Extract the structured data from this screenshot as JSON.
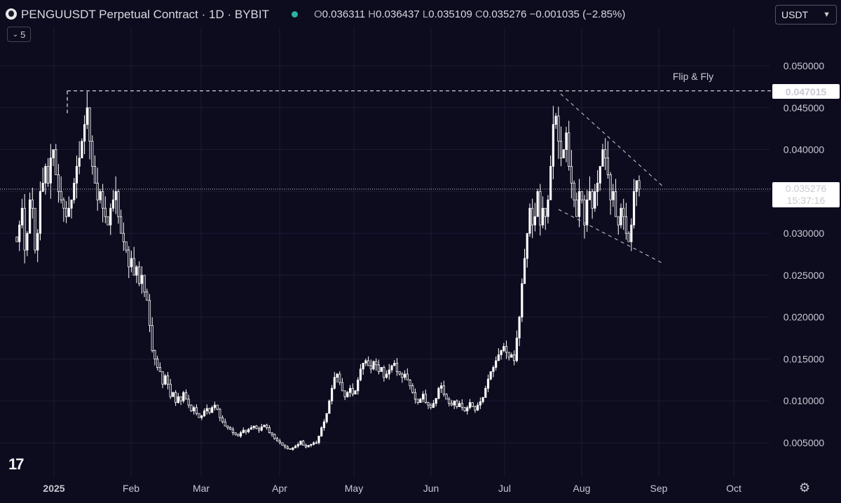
{
  "header": {
    "title": "PENGUUSDT Perpetual Contract · 1D · BYBIT",
    "o_label": "O",
    "o": "0.036311",
    "h_label": "H",
    "h": "0.036437",
    "l_label": "L",
    "l": "0.035109",
    "c_label": "C",
    "c": "0.035276",
    "change": "−0.001035 (−2.85%)"
  },
  "indicator_count": "5",
  "currency_select": "USDT",
  "annotation": "Flip & Fly",
  "price_tags": {
    "level": "0.047015",
    "last": "0.035276",
    "countdown": "15:37:16"
  },
  "icons": {
    "logo": "pengu-logo-icon",
    "settings": "gear-icon",
    "brand": "tradingview-logo-icon"
  },
  "colors": {
    "background": "#0d0b1e",
    "candle": "#ffffff",
    "accent": "#2bb2a4"
  },
  "chart_data": {
    "type": "candlestick",
    "title": "PENGUUSDT Perpetual Contract · 1D · BYBIT",
    "ylim": [
      0.002,
      0.0525
    ],
    "y_ticks": [
      "0.050000",
      "0.045000",
      "0.040000",
      "0.035000",
      "0.030000",
      "0.025000",
      "0.020000",
      "0.015000",
      "0.010000",
      "0.005000"
    ],
    "x_ticks": [
      "2025",
      "Feb",
      "Mar",
      "Apr",
      "May",
      "Jun",
      "Jul",
      "Aug",
      "Sep",
      "Oct"
    ],
    "horizontal_level": 0.047015,
    "last_price": 0.035276,
    "close_series": [
      0.029,
      0.031,
      0.033,
      0.028,
      0.03,
      0.034,
      0.033,
      0.028,
      0.03,
      0.035,
      0.036,
      0.038,
      0.036,
      0.039,
      0.04,
      0.037,
      0.035,
      0.034,
      0.033,
      0.032,
      0.033,
      0.034,
      0.036,
      0.038,
      0.039,
      0.041,
      0.043,
      0.045,
      0.041,
      0.038,
      0.036,
      0.034,
      0.035,
      0.033,
      0.032,
      0.031,
      0.033,
      0.034,
      0.035,
      0.032,
      0.03,
      0.029,
      0.028,
      0.026,
      0.027,
      0.025,
      0.026,
      0.024,
      0.025,
      0.023,
      0.022,
      0.019,
      0.016,
      0.015,
      0.014,
      0.0135,
      0.012,
      0.013,
      0.012,
      0.0105,
      0.011,
      0.0098,
      0.0105,
      0.01,
      0.011,
      0.0102,
      0.0095,
      0.0088,
      0.0092,
      0.0085,
      0.008,
      0.0082,
      0.0088,
      0.0091,
      0.0086,
      0.0092,
      0.0095,
      0.009,
      0.008,
      0.0075,
      0.007,
      0.0068,
      0.0066,
      0.0062,
      0.006,
      0.0058,
      0.0062,
      0.0065,
      0.0063,
      0.0066,
      0.0068,
      0.007,
      0.0067,
      0.0065,
      0.0069,
      0.0071,
      0.0068,
      0.0062,
      0.006,
      0.0055,
      0.0052,
      0.005,
      0.0047,
      0.0045,
      0.0043,
      0.0042,
      0.0044,
      0.0046,
      0.0048,
      0.0052,
      0.0047,
      0.0045,
      0.0047,
      0.0048,
      0.005,
      0.005,
      0.0058,
      0.0068,
      0.0075,
      0.0085,
      0.01,
      0.0115,
      0.0128,
      0.0132,
      0.0122,
      0.0112,
      0.0105,
      0.011,
      0.0115,
      0.0108,
      0.0112,
      0.0125,
      0.0138,
      0.0145,
      0.0148,
      0.0142,
      0.0138,
      0.0147,
      0.0143,
      0.0135,
      0.014,
      0.0128,
      0.0132,
      0.0137,
      0.0142,
      0.0145,
      0.0135,
      0.0132,
      0.0128,
      0.0132,
      0.0125,
      0.0118,
      0.011,
      0.0102,
      0.0098,
      0.0102,
      0.0108,
      0.0098,
      0.0095,
      0.0092,
      0.0097,
      0.0103,
      0.0115,
      0.0118,
      0.0108,
      0.0102,
      0.0097,
      0.0095,
      0.01,
      0.0093,
      0.0097,
      0.0092,
      0.0088,
      0.0092,
      0.0098,
      0.0093,
      0.0089,
      0.0095,
      0.0099,
      0.0104,
      0.0115,
      0.0126,
      0.0135,
      0.014,
      0.0148,
      0.0155,
      0.016,
      0.0165,
      0.0158,
      0.0152,
      0.0155,
      0.0148,
      0.0175,
      0.02,
      0.024,
      0.027,
      0.03,
      0.033,
      0.031,
      0.032,
      0.035,
      0.031,
      0.033,
      0.032,
      0.034,
      0.038,
      0.043,
      0.044,
      0.041,
      0.039,
      0.04,
      0.042,
      0.038,
      0.036,
      0.034,
      0.032,
      0.035,
      0.034,
      0.031,
      0.034,
      0.035,
      0.033,
      0.035,
      0.036,
      0.038,
      0.04,
      0.039,
      0.037,
      0.034,
      0.035,
      0.032,
      0.031,
      0.033,
      0.032,
      0.03,
      0.029,
      0.031,
      0.035,
      0.0363,
      0.035276
    ]
  }
}
